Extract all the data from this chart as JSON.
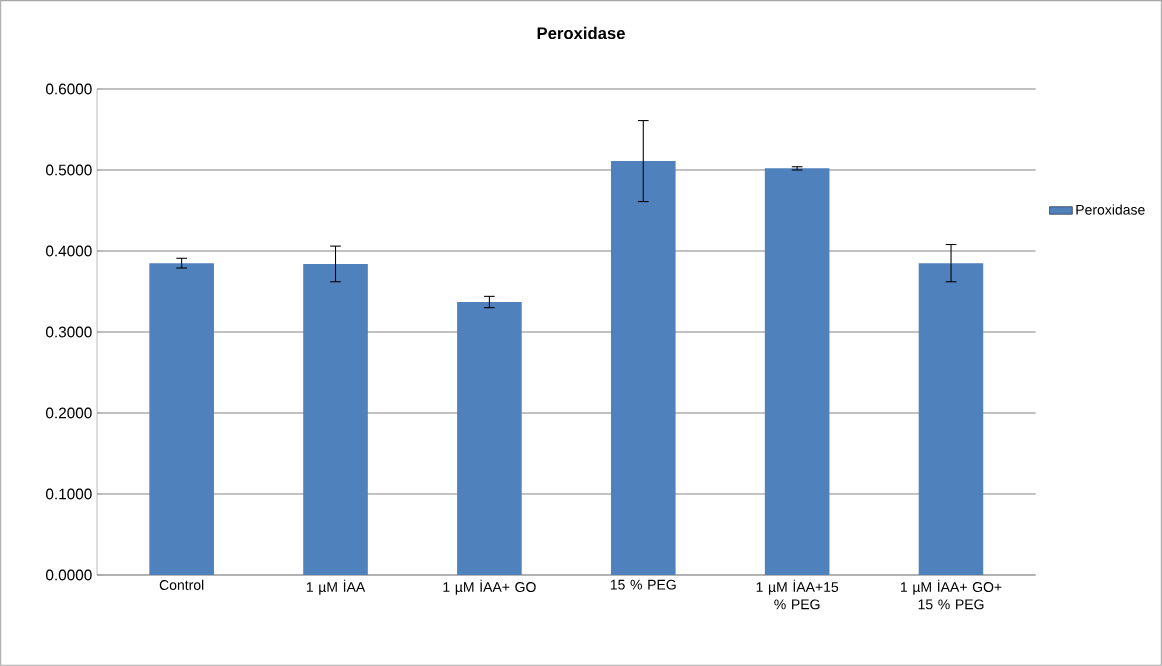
{
  "chart_data": {
    "type": "bar",
    "title": "Peroxidase",
    "categories": [
      "Control",
      "1 µM İAA",
      "1 µM İAA+ GO",
      "15 % PEG",
      "1 µM İAA+15 % PEG",
      "1 µM İAA+ GO+ 15 % PEG"
    ],
    "series": [
      {
        "name": "Peroxidase",
        "color": "#4f81bd",
        "values": [
          0.385,
          0.384,
          0.337,
          0.511,
          0.502,
          0.385
        ],
        "errors": [
          0.006,
          0.022,
          0.007,
          0.05,
          0.002,
          0.023
        ]
      }
    ],
    "ylim": [
      0,
      0.6
    ],
    "yticks": [
      {
        "value": 0,
        "label": "0.0000"
      },
      {
        "value": 0.1,
        "label": "0.1000"
      },
      {
        "value": 0.2,
        "label": "0.2000"
      },
      {
        "value": 0.3,
        "label": "0.3000"
      },
      {
        "value": 0.4,
        "label": "0.4000"
      },
      {
        "value": 0.5,
        "label": "0.5000"
      },
      {
        "value": 0.6,
        "label": "0.6000"
      }
    ],
    "grid": "y",
    "legend": "right"
  }
}
